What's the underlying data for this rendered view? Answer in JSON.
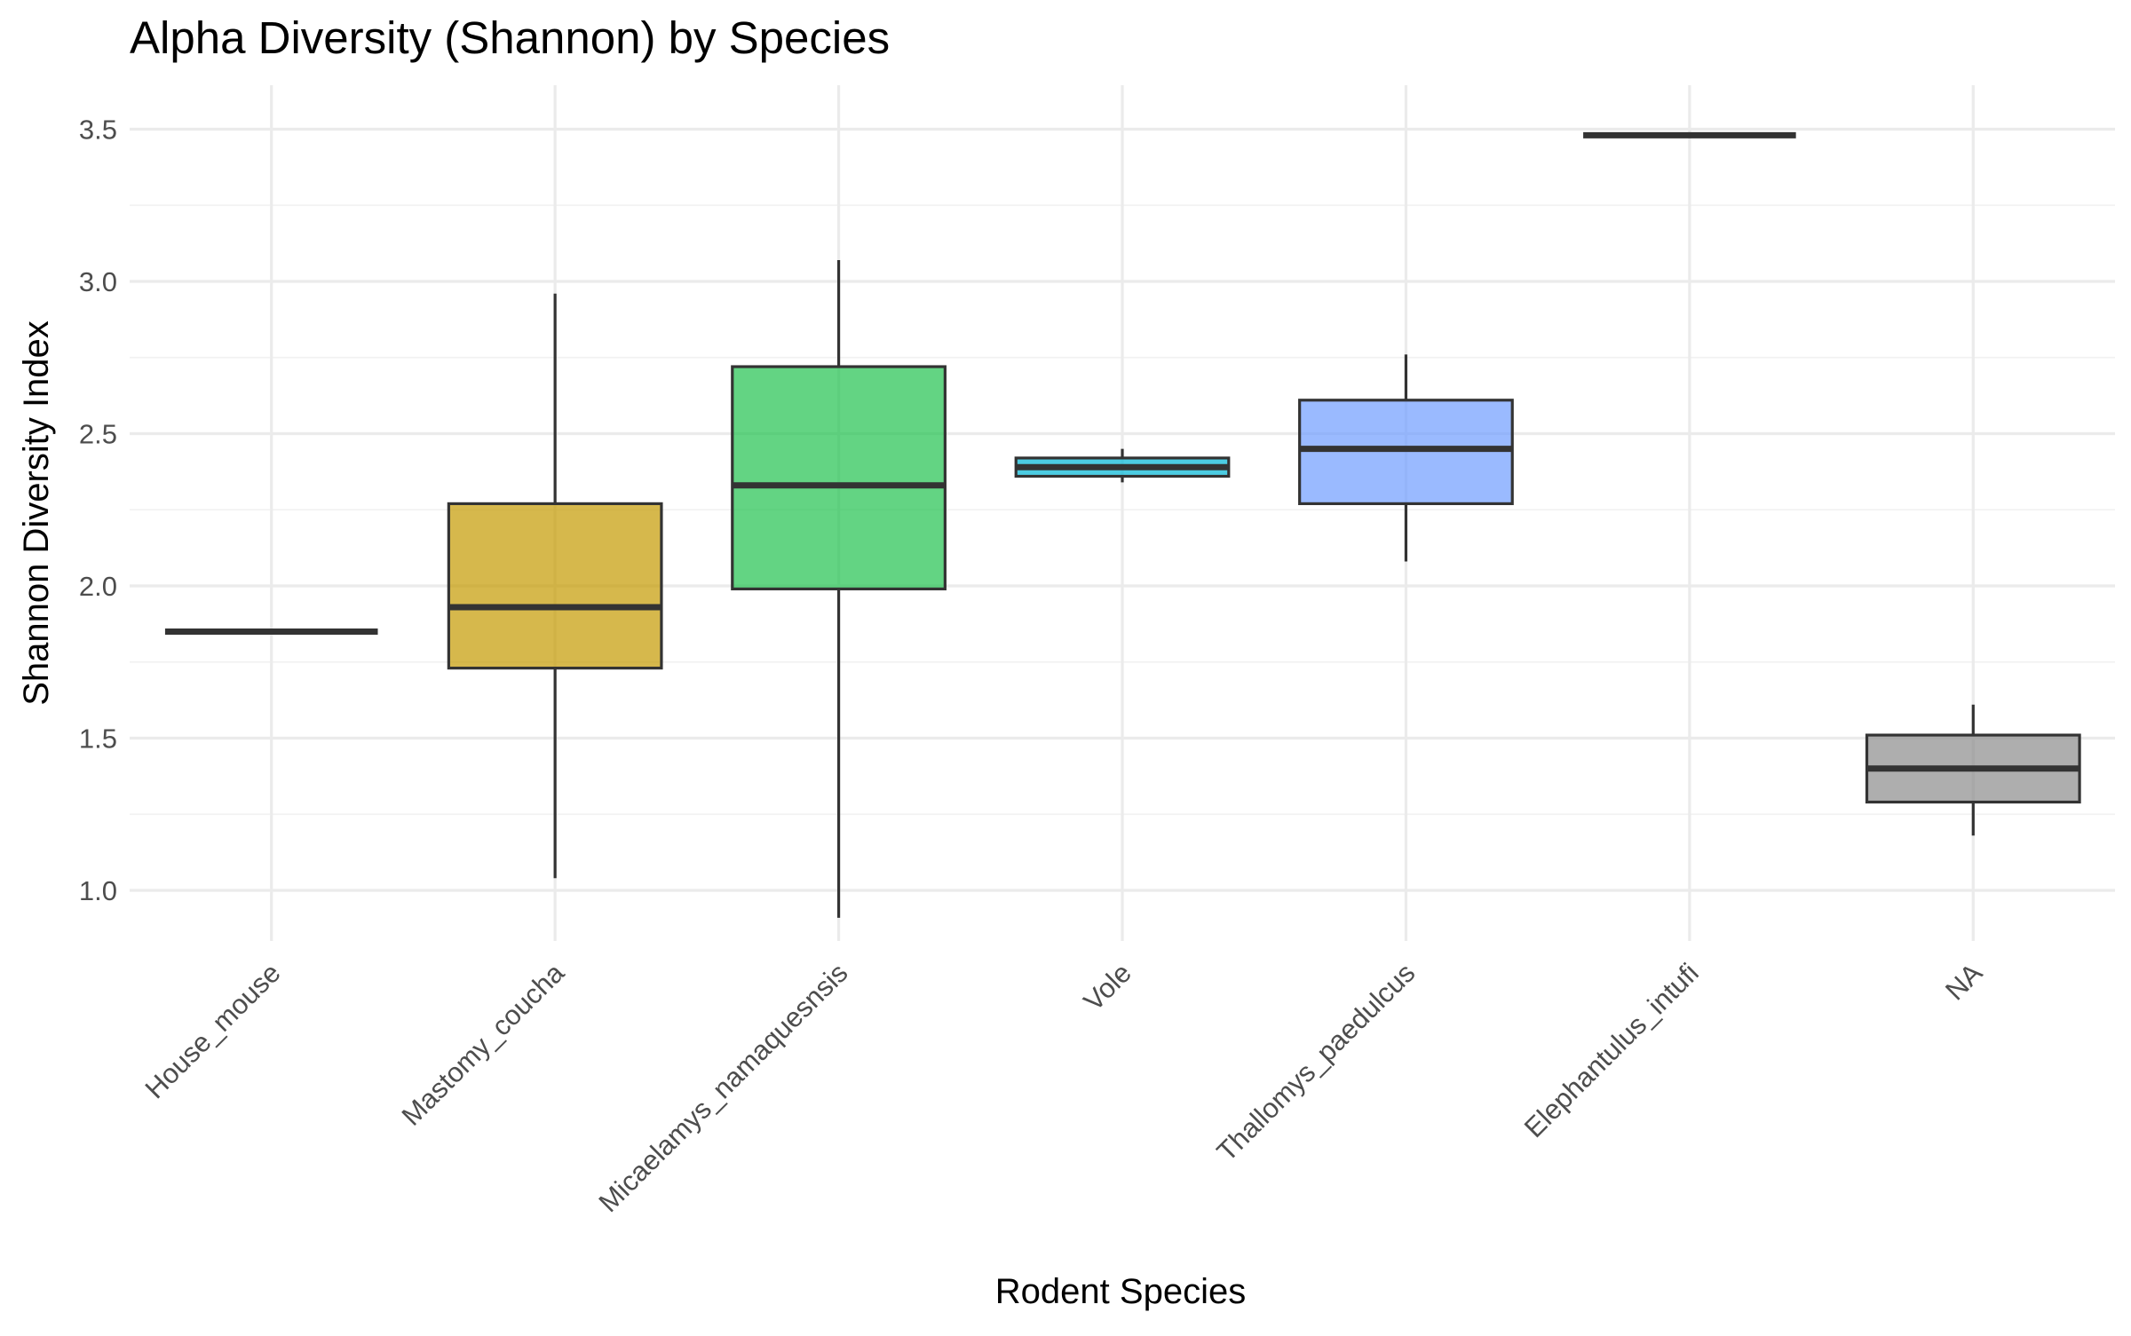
{
  "chart_data": {
    "type": "boxplot",
    "title": "Alpha Diversity (Shannon) by Species",
    "xlabel": "Rodent Species",
    "ylabel": "Shannon Diversity Index",
    "ylim": [
      0.8,
      3.6
    ],
    "y_ticks": [
      1.0,
      1.5,
      2.0,
      2.5,
      3.0,
      3.5
    ],
    "y_tick_labels": [
      "1.0",
      "1.5",
      "2.0",
      "2.5",
      "3.0",
      "3.5"
    ],
    "grid": true,
    "legend": "none",
    "box_alpha": 0.7,
    "categories": [
      "House_mouse",
      "Mastomy_coucha",
      "Micaelamys_namaquesnsis",
      "Vole",
      "Thallomys_paedulcus",
      "Elephantulus_intufi",
      "NA"
    ],
    "boxes": [
      {
        "category": "House_mouse",
        "color": "#f8766d",
        "min": 1.85,
        "q1": 1.85,
        "median": 1.85,
        "q3": 1.85,
        "max": 1.85
      },
      {
        "category": "Mastomy_coucha",
        "color": "#c49a00",
        "min": 1.04,
        "q1": 1.73,
        "median": 1.93,
        "q3": 2.27,
        "max": 2.96
      },
      {
        "category": "Micaelamys_namaquesnsis",
        "color": "#21c24f",
        "min": 0.91,
        "q1": 1.99,
        "median": 2.33,
        "q3": 2.72,
        "max": 3.07
      },
      {
        "category": "Vole",
        "color": "#00b6d6",
        "min": 2.34,
        "q1": 2.36,
        "median": 2.39,
        "q3": 2.42,
        "max": 2.45
      },
      {
        "category": "Thallomys_paedulcus",
        "color": "#6f9dff",
        "min": 2.08,
        "q1": 2.27,
        "median": 2.45,
        "q3": 2.61,
        "max": 2.76
      },
      {
        "category": "Elephantulus_intufi",
        "color": "#f8766d",
        "min": 3.48,
        "q1": 3.48,
        "median": 3.48,
        "q3": 3.48,
        "max": 3.48
      },
      {
        "category": "NA",
        "color": "#8c8c8c",
        "min": 1.18,
        "q1": 1.29,
        "median": 1.4,
        "q3": 1.51,
        "max": 1.61
      }
    ]
  }
}
